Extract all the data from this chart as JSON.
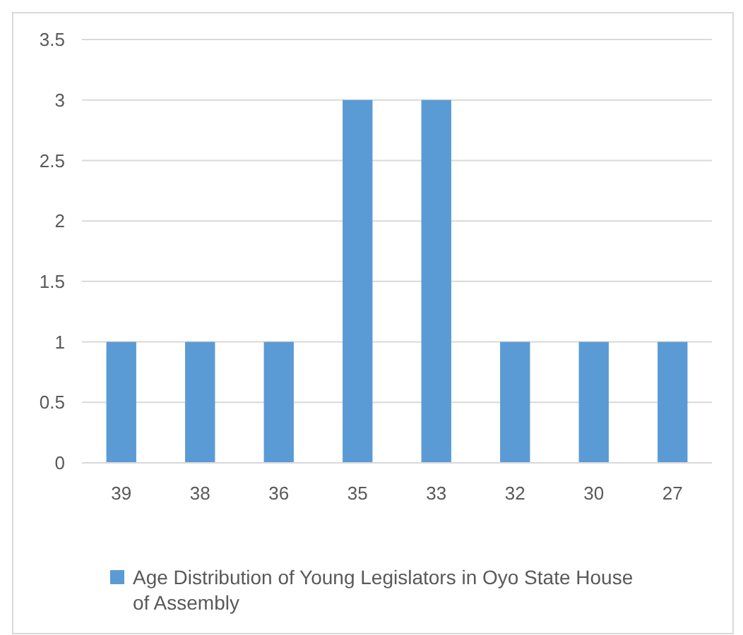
{
  "chart_data": {
    "type": "bar",
    "categories": [
      "39",
      "38",
      "36",
      "35",
      "33",
      "32",
      "30",
      "27"
    ],
    "series": [
      {
        "name": "Age Distribution of Young Legislators in Oyo State House of Assembly",
        "color": "#5b9bd5",
        "values": [
          1,
          1,
          1,
          3,
          3,
          1,
          1,
          1
        ]
      }
    ],
    "ylim": [
      0,
      3.5
    ],
    "yticks": [
      0,
      0.5,
      1,
      1.5,
      2,
      2.5,
      3,
      3.5
    ],
    "grid": "y",
    "legend": "bottom"
  }
}
